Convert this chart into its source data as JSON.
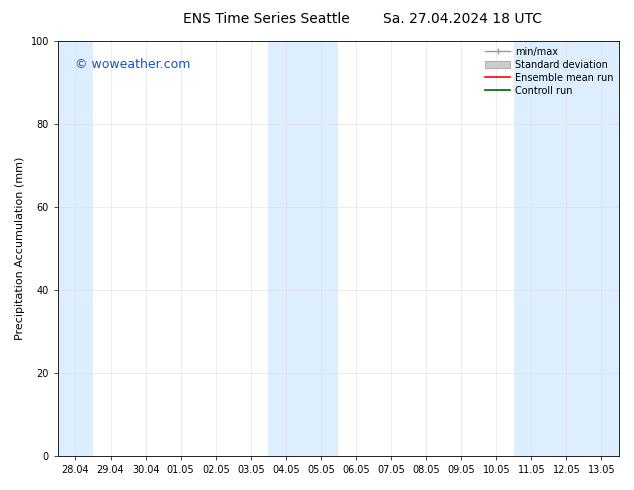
{
  "title_left": "ENS Time Series Seattle",
  "title_right": "Sa. 27.04.2024 18 UTC",
  "ylabel": "Precipitation Accumulation (mm)",
  "ylim": [
    0,
    100
  ],
  "yticks": [
    0,
    20,
    40,
    60,
    80,
    100
  ],
  "xtick_labels": [
    "28.04",
    "29.04",
    "30.04",
    "01.05",
    "02.05",
    "03.05",
    "04.05",
    "05.05",
    "06.05",
    "07.05",
    "08.05",
    "09.05",
    "10.05",
    "11.05",
    "12.05",
    "13.05"
  ],
  "bg_color": "#ffffff",
  "plot_bg_color": "#ffffff",
  "shaded_band_color": "#ddeeff",
  "watermark_text": "© woweather.com",
  "watermark_color": "#1155cc",
  "legend_items": [
    {
      "label": "min/max",
      "color": "#aaaaaa",
      "type": "errorbar"
    },
    {
      "label": "Standard deviation",
      "color": "#cccccc",
      "type": "band"
    },
    {
      "label": "Ensemble mean run",
      "color": "#ff0000",
      "type": "line"
    },
    {
      "label": "Controll run",
      "color": "#006600",
      "type": "line"
    }
  ],
  "title_fontsize": 10,
  "axis_fontsize": 8,
  "tick_fontsize": 7,
  "legend_fontsize": 7,
  "watermark_fontsize": 9,
  "weekend_indices": [
    0,
    6,
    7,
    13,
    14,
    15
  ]
}
